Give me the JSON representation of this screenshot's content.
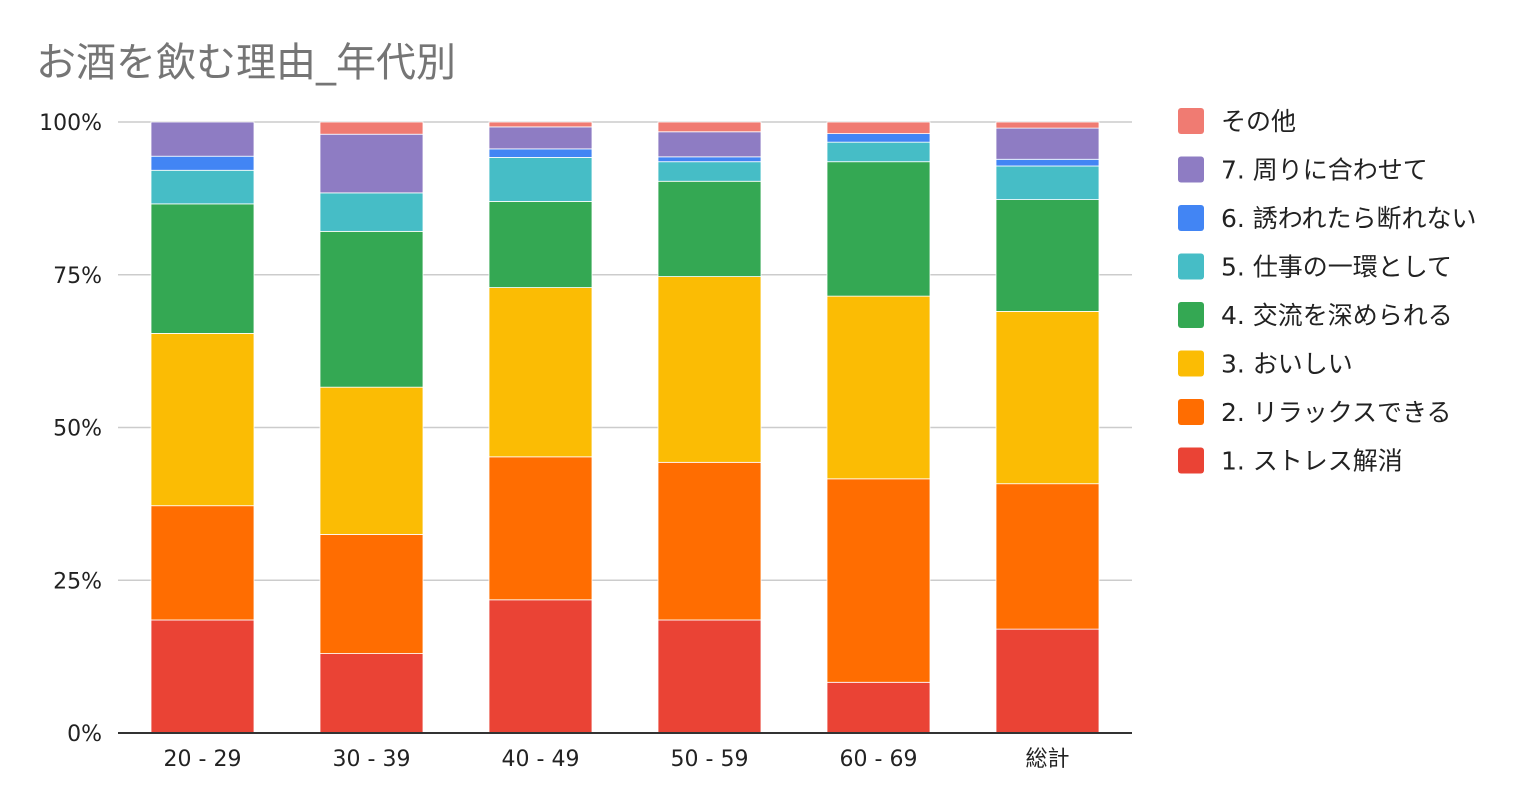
{
  "chart_data": {
    "type": "bar",
    "stacked": true,
    "normalized": true,
    "title": "お酒を飲む理由_年代別",
    "xlabel": "",
    "ylabel": "",
    "categories": [
      "20 - 29",
      "30 - 39",
      "40 - 49",
      "50 - 59",
      "60 - 69",
      "総計"
    ],
    "yticks": [
      "0%",
      "25%",
      "50%",
      "75%",
      "100%"
    ],
    "ylim": [
      0,
      100
    ],
    "grid": true,
    "legend_position": "right",
    "series": [
      {
        "name": "1.  ストレス解消",
        "color": "#ea4335",
        "values": [
          18.5,
          13.0,
          21.8,
          18.5,
          8.3,
          17.0
        ]
      },
      {
        "name": "2.  リラックスできる",
        "color": "#ff6d01",
        "values": [
          18.7,
          19.5,
          23.4,
          25.8,
          33.3,
          23.8
        ]
      },
      {
        "name": "3.  おいしい",
        "color": "#fbbc04",
        "values": [
          28.2,
          24.1,
          27.7,
          30.4,
          29.9,
          28.2
        ]
      },
      {
        "name": "4.  交流を深められる",
        "color": "#34a853",
        "values": [
          21.2,
          25.5,
          14.1,
          15.6,
          22.0,
          18.3
        ]
      },
      {
        "name": "5.  仕事の一環として",
        "color": "#46bdc6",
        "values": [
          5.5,
          6.3,
          7.2,
          3.2,
          3.2,
          5.5
        ]
      },
      {
        "name": "6.  誘われたら断れない",
        "color": "#4285f4",
        "values": [
          2.3,
          0.0,
          1.4,
          0.8,
          1.4,
          1.1
        ]
      },
      {
        "name": "7.  周りに合わせて",
        "color": "#8e7cc3",
        "values": [
          5.6,
          9.6,
          3.6,
          4.1,
          0.0,
          5.1
        ]
      },
      {
        "name": "その他",
        "color": "#f07b72",
        "values": [
          0.0,
          2.0,
          0.8,
          1.6,
          1.9,
          1.0
        ]
      }
    ]
  }
}
